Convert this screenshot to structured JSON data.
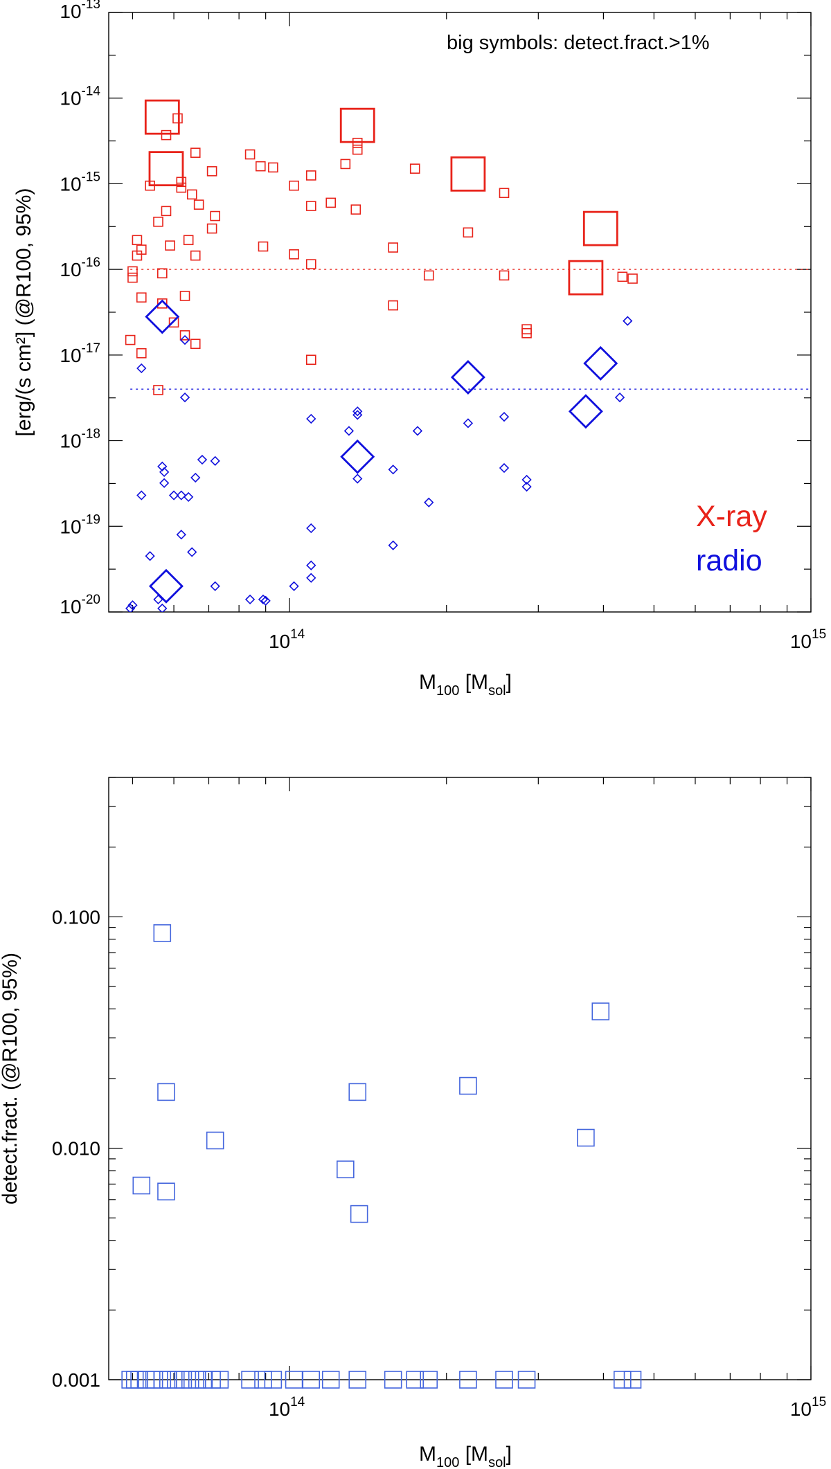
{
  "chart_data": [
    {
      "type": "scatter",
      "scale": "log-log",
      "xlabel": {
        "main": "M",
        "sub": "100",
        "rest1": " [M",
        "sub2": "sol",
        "rest2": "]"
      },
      "ylabel": "[erg/(s cm²] (@R100, 95%)",
      "xlim": [
        45000000000000.0,
        1000000000000000.0
      ],
      "ylim": [
        1e-20,
        1e-13
      ],
      "x_ticks": [
        {
          "value": 100000000000000.0,
          "base": "10",
          "exp": "14"
        },
        {
          "value": 1000000000000000.0,
          "base": "10",
          "exp": "15"
        }
      ],
      "y_ticks": [
        {
          "value": 1e-13,
          "base": "10",
          "exp": "-13"
        },
        {
          "value": 1e-14,
          "base": "10",
          "exp": "-14"
        },
        {
          "value": 1e-15,
          "base": "10",
          "exp": "-15"
        },
        {
          "value": 1e-16,
          "base": "10",
          "exp": "-16"
        },
        {
          "value": 1e-17,
          "base": "10",
          "exp": "-17"
        },
        {
          "value": 1e-18,
          "base": "10",
          "exp": "-18"
        },
        {
          "value": 1e-19,
          "base": "10",
          "exp": "-19"
        },
        {
          "value": 1e-20,
          "base": "10",
          "exp": "-20"
        }
      ],
      "annotation": "big symbols: detect.fract.>1%",
      "legend": [
        {
          "label": "X-ray",
          "color": "#e8231a"
        },
        {
          "label": "radio",
          "color": "#1010dd"
        }
      ],
      "reference_lines": [
        {
          "series": "X-ray",
          "y": 1e-16,
          "color": "#e8231a"
        },
        {
          "series": "radio",
          "y": 4e-18,
          "color": "#1010dd"
        }
      ],
      "series": [
        {
          "name": "X-ray",
          "marker": "square",
          "color": "#e8231a",
          "points": [
            [
              57000000000000.0,
              6e-15,
              "big"
            ],
            [
              58000000000000.0,
              1.5e-15,
              "big"
            ],
            [
              135000000000000.0,
              4.8e-15,
              "big"
            ],
            [
              220000000000000.0,
              1.3e-15,
              "big"
            ],
            [
              395000000000000.0,
              3e-16,
              "big"
            ],
            [
              370000000000000.0,
              8e-17,
              "big"
            ],
            [
              58000000000000.0,
              3.7e-15
            ],
            [
              61000000000000.0,
              5.8e-15
            ],
            [
              66000000000000.0,
              2.3e-15
            ],
            [
              71000000000000.0,
              1.4e-15
            ],
            [
              54000000000000.0,
              9.5e-16
            ],
            [
              62000000000000.0,
              1.05e-15
            ],
            [
              62000000000000.0,
              9e-16
            ],
            [
              65000000000000.0,
              7.5e-16
            ],
            [
              67000000000000.0,
              5.7e-16
            ],
            [
              58000000000000.0,
              4.8e-16
            ],
            [
              72000000000000.0,
              4.2e-16
            ],
            [
              56000000000000.0,
              3.6e-16
            ],
            [
              71000000000000.0,
              3e-16
            ],
            [
              51000000000000.0,
              2.2e-16
            ],
            [
              64000000000000.0,
              2.2e-16
            ],
            [
              52000000000000.0,
              1.7e-16
            ],
            [
              59000000000000.0,
              1.9e-16
            ],
            [
              51000000000000.0,
              1.45e-16
            ],
            [
              66000000000000.0,
              1.45e-16
            ],
            [
              50000000000000.0,
              9.5e-17
            ],
            [
              50000000000000.0,
              8e-17
            ],
            [
              57000000000000.0,
              9e-17
            ],
            [
              52000000000000.0,
              4.7e-17
            ],
            [
              63000000000000.0,
              4.9e-17
            ],
            [
              57000000000000.0,
              4e-17
            ],
            [
              60000000000000.0,
              2.4e-17
            ],
            [
              63000000000000.0,
              1.7e-17
            ],
            [
              66000000000000.0,
              1.35e-17
            ],
            [
              49500000000000.0,
              1.5e-17
            ],
            [
              52000000000000.0,
              1.05e-17
            ],
            [
              56000000000000.0,
              3.9e-18
            ],
            [
              84000000000000.0,
              2.2e-15
            ],
            [
              88000000000000.0,
              1.6e-15
            ],
            [
              93000000000000.0,
              1.55e-15
            ],
            [
              102000000000000.0,
              9.5e-16
            ],
            [
              110000000000000.0,
              1.25e-15
            ],
            [
              110000000000000.0,
              5.5e-16
            ],
            [
              120000000000000.0,
              6e-16
            ],
            [
              128000000000000.0,
              1.7e-15
            ],
            [
              135000000000000.0,
              3e-15
            ],
            [
              135000000000000.0,
              2.5e-15
            ],
            [
              134000000000000.0,
              5e-16
            ],
            [
              174000000000000.0,
              1.5e-15
            ],
            [
              89000000000000.0,
              1.85e-16
            ],
            [
              102000000000000.0,
              1.5e-16
            ],
            [
              110000000000000.0,
              1.15e-16
            ],
            [
              110000000000000.0,
              8.8e-18
            ],
            [
              158000000000000.0,
              1.8e-16
            ],
            [
              158000000000000.0,
              3.8e-17
            ],
            [
              185000000000000.0,
              8.5e-17
            ],
            [
              220000000000000.0,
              2.7e-16
            ],
            [
              258000000000000.0,
              7.8e-16
            ],
            [
              258000000000000.0,
              8.5e-17
            ],
            [
              285000000000000.0,
              2e-17
            ],
            [
              285000000000000.0,
              1.8e-17
            ],
            [
              435000000000000.0,
              8.2e-17
            ],
            [
              455000000000000.0,
              7.8e-17
            ]
          ]
        },
        {
          "name": "radio",
          "marker": "diamond",
          "color": "#1010dd",
          "points": [
            [
              57000000000000.0,
              2.8e-17,
              "big"
            ],
            [
              220000000000000.0,
              5.5e-18,
              "big"
            ],
            [
              395000000000000.0,
              8e-18,
              "big"
            ],
            [
              370000000000000.0,
              2.2e-18,
              "big"
            ],
            [
              135000000000000.0,
              6.5e-19,
              "big"
            ],
            [
              58000000000000.0,
              2e-20,
              "big"
            ],
            [
              52000000000000.0,
              7e-18
            ],
            [
              63000000000000.0,
              1.5e-17
            ],
            [
              63000000000000.0,
              3.2e-18
            ],
            [
              445000000000000.0,
              2.5e-17
            ],
            [
              430000000000000.0,
              3.2e-18
            ],
            [
              110000000000000.0,
              1.8e-18
            ],
            [
              135000000000000.0,
              2.2e-18
            ],
            [
              135000000000000.0,
              2e-18
            ],
            [
              130000000000000.0,
              1.3e-18
            ],
            [
              176000000000000.0,
              1.3e-18
            ],
            [
              220000000000000.0,
              1.6e-18
            ],
            [
              258000000000000.0,
              1.9e-18
            ],
            [
              57000000000000.0,
              5e-19
            ],
            [
              57500000000000.0,
              4.3e-19
            ],
            [
              57500000000000.0,
              3.2e-19
            ],
            [
              52000000000000.0,
              2.3e-19
            ],
            [
              60000000000000.0,
              2.3e-19
            ],
            [
              62000000000000.0,
              2.3e-19
            ],
            [
              64000000000000.0,
              2.2e-19
            ],
            [
              66000000000000.0,
              3.7e-19
            ],
            [
              68000000000000.0,
              6e-19
            ],
            [
              72000000000000.0,
              5.8e-19
            ],
            [
              135000000000000.0,
              3.6e-19
            ],
            [
              158000000000000.0,
              4.6e-19
            ],
            [
              185000000000000.0,
              1.9e-19
            ],
            [
              258000000000000.0,
              4.8e-19
            ],
            [
              285000000000000.0,
              3.5e-19
            ],
            [
              285000000000000.0,
              2.9e-19
            ],
            [
              110000000000000.0,
              9.5e-20
            ],
            [
              62000000000000.0,
              8e-20
            ],
            [
              54000000000000.0,
              4.5e-20
            ],
            [
              65000000000000.0,
              5e-20
            ],
            [
              158000000000000.0,
              6e-20
            ],
            [
              110000000000000.0,
              3.5e-20
            ],
            [
              110000000000000.0,
              2.5e-20
            ],
            [
              102000000000000.0,
              2e-20
            ],
            [
              72000000000000.0,
              2e-20
            ],
            [
              84000000000000.0,
              1.4e-20
            ],
            [
              89000000000000.0,
              1.4e-20
            ],
            [
              90000000000000.0,
              1.35e-20
            ],
            [
              50000000000000.0,
              1.2e-20
            ],
            [
              49500000000000.0,
              1.1e-20
            ],
            [
              57000000000000.0,
              1.1e-20
            ],
            [
              56000000000000.0,
              1.4e-20
            ]
          ]
        }
      ]
    },
    {
      "type": "scatter",
      "scale": "log-log",
      "xlabel": {
        "main": "M",
        "sub": "100",
        "rest1": " [M",
        "sub2": "sol",
        "rest2": "]"
      },
      "ylabel": "detect.fract. (@R100, 95%)",
      "xlim": [
        45000000000000.0,
        1000000000000000.0
      ],
      "ylim": [
        0.001,
        0.4
      ],
      "x_ticks": [
        {
          "value": 100000000000000.0,
          "base": "10",
          "exp": "14"
        },
        {
          "value": 1000000000000000.0,
          "base": "10",
          "exp": "15"
        }
      ],
      "y_ticks": [
        {
          "value": 0.1,
          "label": "0.100"
        },
        {
          "value": 0.01,
          "label": "0.010"
        },
        {
          "value": 0.001,
          "label": "0.001"
        }
      ],
      "series": [
        {
          "name": "detect.fract.",
          "marker": "square",
          "color": "#4466dd",
          "points": [
            [
              57000000000000.0,
              0.085
            ],
            [
              58000000000000.0,
              0.0175
            ],
            [
              72000000000000.0,
              0.0108
            ],
            [
              52000000000000.0,
              0.0069
            ],
            [
              58000000000000.0,
              0.0065
            ],
            [
              135000000000000.0,
              0.0175
            ],
            [
              128000000000000.0,
              0.0081
            ],
            [
              136000000000000.0,
              0.0052
            ],
            [
              220000000000000.0,
              0.0186
            ],
            [
              395000000000000.0,
              0.039
            ],
            [
              370000000000000.0,
              0.0111
            ],
            [
              49500000000000.0,
              0.001
            ],
            [
              50500000000000.0,
              0.001
            ],
            [
              51500000000000.0,
              0.001
            ],
            [
              53000000000000.0,
              0.001
            ],
            [
              55000000000000.0,
              0.001
            ],
            [
              57000000000000.0,
              0.001
            ],
            [
              58500000000000.0,
              0.001
            ],
            [
              60500000000000.0,
              0.001
            ],
            [
              62500000000000.0,
              0.001
            ],
            [
              64500000000000.0,
              0.001
            ],
            [
              66500000000000.0,
              0.001
            ],
            [
              68500000000000.0,
              0.001
            ],
            [
              71000000000000.0,
              0.001
            ],
            [
              73500000000000.0,
              0.001
            ],
            [
              84000000000000.0,
              0.001
            ],
            [
              89000000000000.0,
              0.001
            ],
            [
              93000000000000.0,
              0.001
            ],
            [
              102000000000000.0,
              0.001
            ],
            [
              110000000000000.0,
              0.001
            ],
            [
              120000000000000.0,
              0.001
            ],
            [
              135000000000000.0,
              0.001
            ],
            [
              158000000000000.0,
              0.001
            ],
            [
              174000000000000.0,
              0.001
            ],
            [
              185000000000000.0,
              0.001
            ],
            [
              220000000000000.0,
              0.001
            ],
            [
              258000000000000.0,
              0.001
            ],
            [
              285000000000000.0,
              0.001
            ],
            [
              435000000000000.0,
              0.001
            ],
            [
              455000000000000.0,
              0.001
            ]
          ]
        }
      ]
    }
  ]
}
